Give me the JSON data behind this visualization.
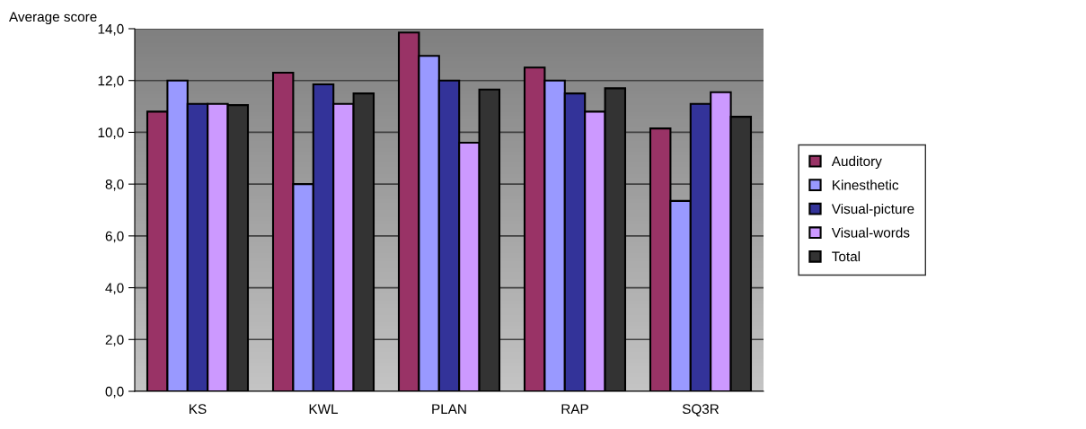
{
  "chart_data": {
    "type": "bar",
    "ylabel": "Average score",
    "categories": [
      "KS",
      "KWL",
      "PLAN",
      "RAP",
      "SQ3R"
    ],
    "series": [
      {
        "name": "Auditory",
        "color": "#993366",
        "values": [
          10.8,
          12.3,
          13.85,
          12.5,
          10.15
        ]
      },
      {
        "name": "Kinesthetic",
        "color": "#9999ff",
        "values": [
          12.0,
          8.0,
          12.95,
          12.0,
          7.35
        ]
      },
      {
        "name": "Visual-picture",
        "color": "#333399",
        "values": [
          11.1,
          11.85,
          12.0,
          11.5,
          11.1
        ]
      },
      {
        "name": "Visual-words",
        "color": "#cc99ff",
        "values": [
          11.1,
          11.1,
          9.6,
          10.8,
          11.55
        ]
      },
      {
        "name": "Total",
        "color": "#333333",
        "values": [
          11.05,
          11.5,
          11.65,
          11.7,
          10.6
        ]
      }
    ],
    "ylim": [
      0,
      14
    ],
    "yticks": [
      {
        "value": 0,
        "label": "0,0"
      },
      {
        "value": 2,
        "label": "2,0"
      },
      {
        "value": 4,
        "label": "4,0"
      },
      {
        "value": 6,
        "label": "6,0"
      },
      {
        "value": 8,
        "label": "8,0"
      },
      {
        "value": 10,
        "label": "10,0"
      },
      {
        "value": 12,
        "label": "12,0"
      },
      {
        "value": 14,
        "label": "14,0"
      }
    ],
    "grid": "y",
    "legend": "right"
  }
}
